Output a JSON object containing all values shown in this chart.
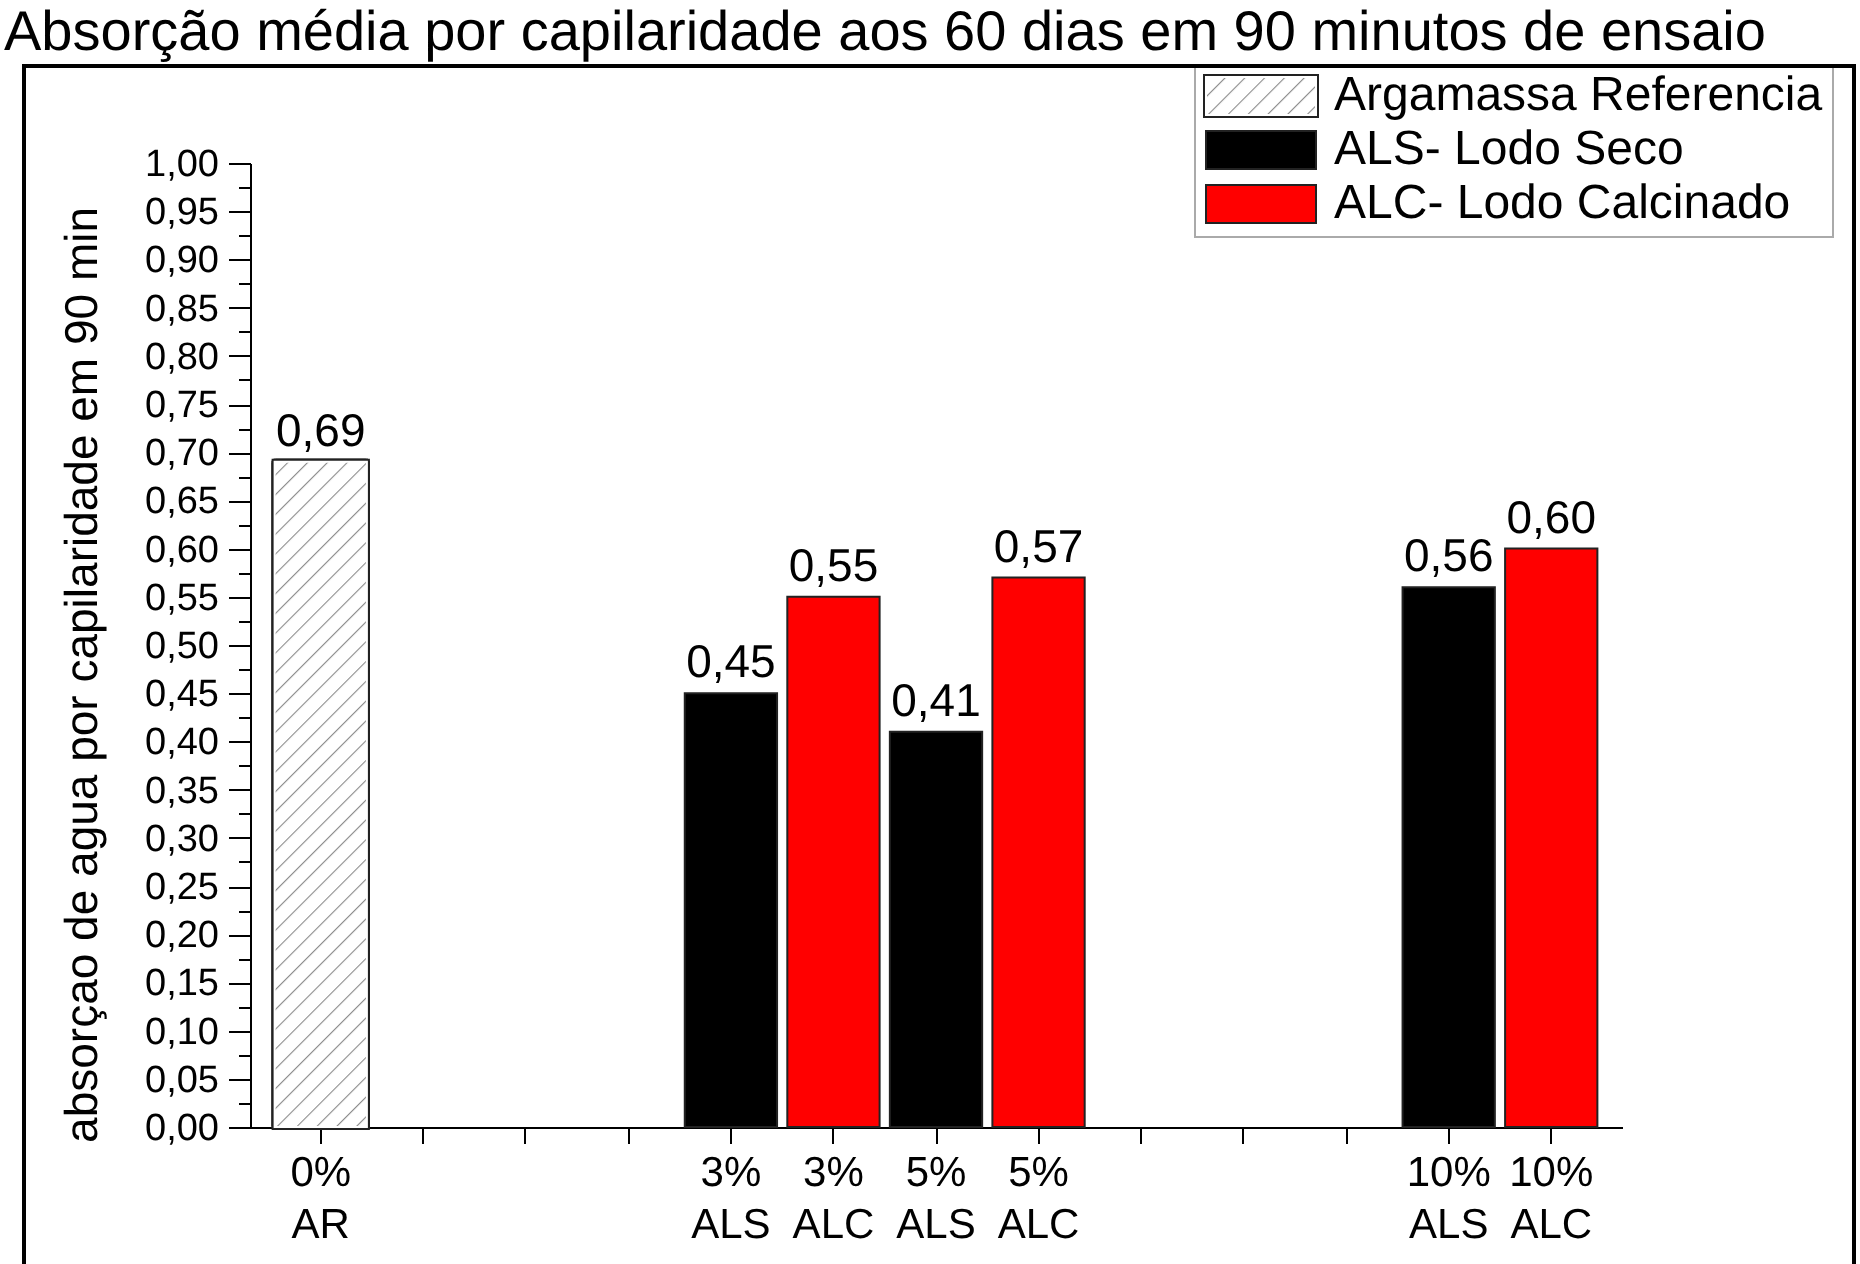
{
  "chart_data": {
    "type": "bar",
    "title": "Absorção média por capilaridade aos 60 dias em 90 minutos de ensaio",
    "ylabel": "absorçao de agua por capilaridade em 90 min",
    "categories": [
      "0%\nAR",
      null,
      null,
      null,
      "3%\nALS",
      "3%\nALC",
      "5%\nALS",
      "5%\nALC",
      null,
      null,
      null,
      "10%\nALS",
      "10%\nALC"
    ],
    "series": [
      {
        "name": "Argamassa Referencia",
        "color": "#ffffff",
        "values": [
          0.69,
          null,
          null,
          null,
          null,
          null,
          null,
          null,
          null,
          null,
          null,
          null,
          null
        ],
        "value_labels": [
          "0,69",
          null,
          null,
          null,
          null,
          null,
          null,
          null,
          null,
          null,
          null,
          null,
          null
        ]
      },
      {
        "name": "ALS- Lodo Seco",
        "color": "#000000",
        "values": [
          null,
          null,
          null,
          null,
          0.45,
          null,
          0.41,
          null,
          null,
          null,
          null,
          0.56,
          null
        ],
        "value_labels": [
          null,
          null,
          null,
          null,
          "0,45",
          null,
          "0,41",
          null,
          null,
          null,
          null,
          "0,56",
          null
        ]
      },
      {
        "name": "ALC- Lodo Calcinado",
        "color": "#ff0000",
        "values": [
          null,
          null,
          null,
          null,
          null,
          0.55,
          null,
          0.57,
          null,
          null,
          null,
          null,
          0.6
        ],
        "value_labels": [
          null,
          null,
          null,
          null,
          null,
          "0,55",
          null,
          "0,57",
          null,
          null,
          null,
          null,
          "0,60"
        ]
      }
    ],
    "ylim": [
      0,
      1
    ],
    "yticks": [
      {
        "value": 0,
        "label": "0,00"
      },
      {
        "value": 0.025,
        "label": null
      },
      {
        "value": 0.05,
        "label": "0,05"
      },
      {
        "value": 0.075,
        "label": null
      },
      {
        "value": 0.1,
        "label": "0,10"
      },
      {
        "value": 0.125,
        "label": null
      },
      {
        "value": 0.15,
        "label": "0,15"
      },
      {
        "value": 0.175,
        "label": null
      },
      {
        "value": 0.2,
        "label": "0,20"
      },
      {
        "value": 0.225,
        "label": null
      },
      {
        "value": 0.25,
        "label": "0,25"
      },
      {
        "value": 0.275,
        "label": null
      },
      {
        "value": 0.3,
        "label": "0,30"
      },
      {
        "value": 0.325,
        "label": null
      },
      {
        "value": 0.35,
        "label": "0,35"
      },
      {
        "value": 0.375,
        "label": null
      },
      {
        "value": 0.4,
        "label": "0,40"
      },
      {
        "value": 0.425,
        "label": null
      },
      {
        "value": 0.45,
        "label": "0,45"
      },
      {
        "value": 0.475,
        "label": null
      },
      {
        "value": 0.5,
        "label": "0,50"
      },
      {
        "value": 0.525,
        "label": null
      },
      {
        "value": 0.55,
        "label": "0,55"
      },
      {
        "value": 0.575,
        "label": null
      },
      {
        "value": 0.6,
        "label": "0,60"
      },
      {
        "value": 0.625,
        "label": null
      },
      {
        "value": 0.65,
        "label": "0,65"
      },
      {
        "value": 0.675,
        "label": null
      },
      {
        "value": 0.7,
        "label": "0,70"
      },
      {
        "value": 0.725,
        "label": null
      },
      {
        "value": 0.75,
        "label": "0,75"
      },
      {
        "value": 0.775,
        "label": null
      },
      {
        "value": 0.8,
        "label": "0,80"
      },
      {
        "value": 0.825,
        "label": null
      },
      {
        "value": 0.85,
        "label": "0,85"
      },
      {
        "value": 0.875,
        "label": null
      },
      {
        "value": 0.9,
        "label": "0,90"
      },
      {
        "value": 0.925,
        "label": null
      },
      {
        "value": 0.95,
        "label": "0,95"
      },
      {
        "value": 0.975,
        "label": null
      },
      {
        "value": 1,
        "label": "1,00"
      }
    ],
    "legend": "top right"
  }
}
